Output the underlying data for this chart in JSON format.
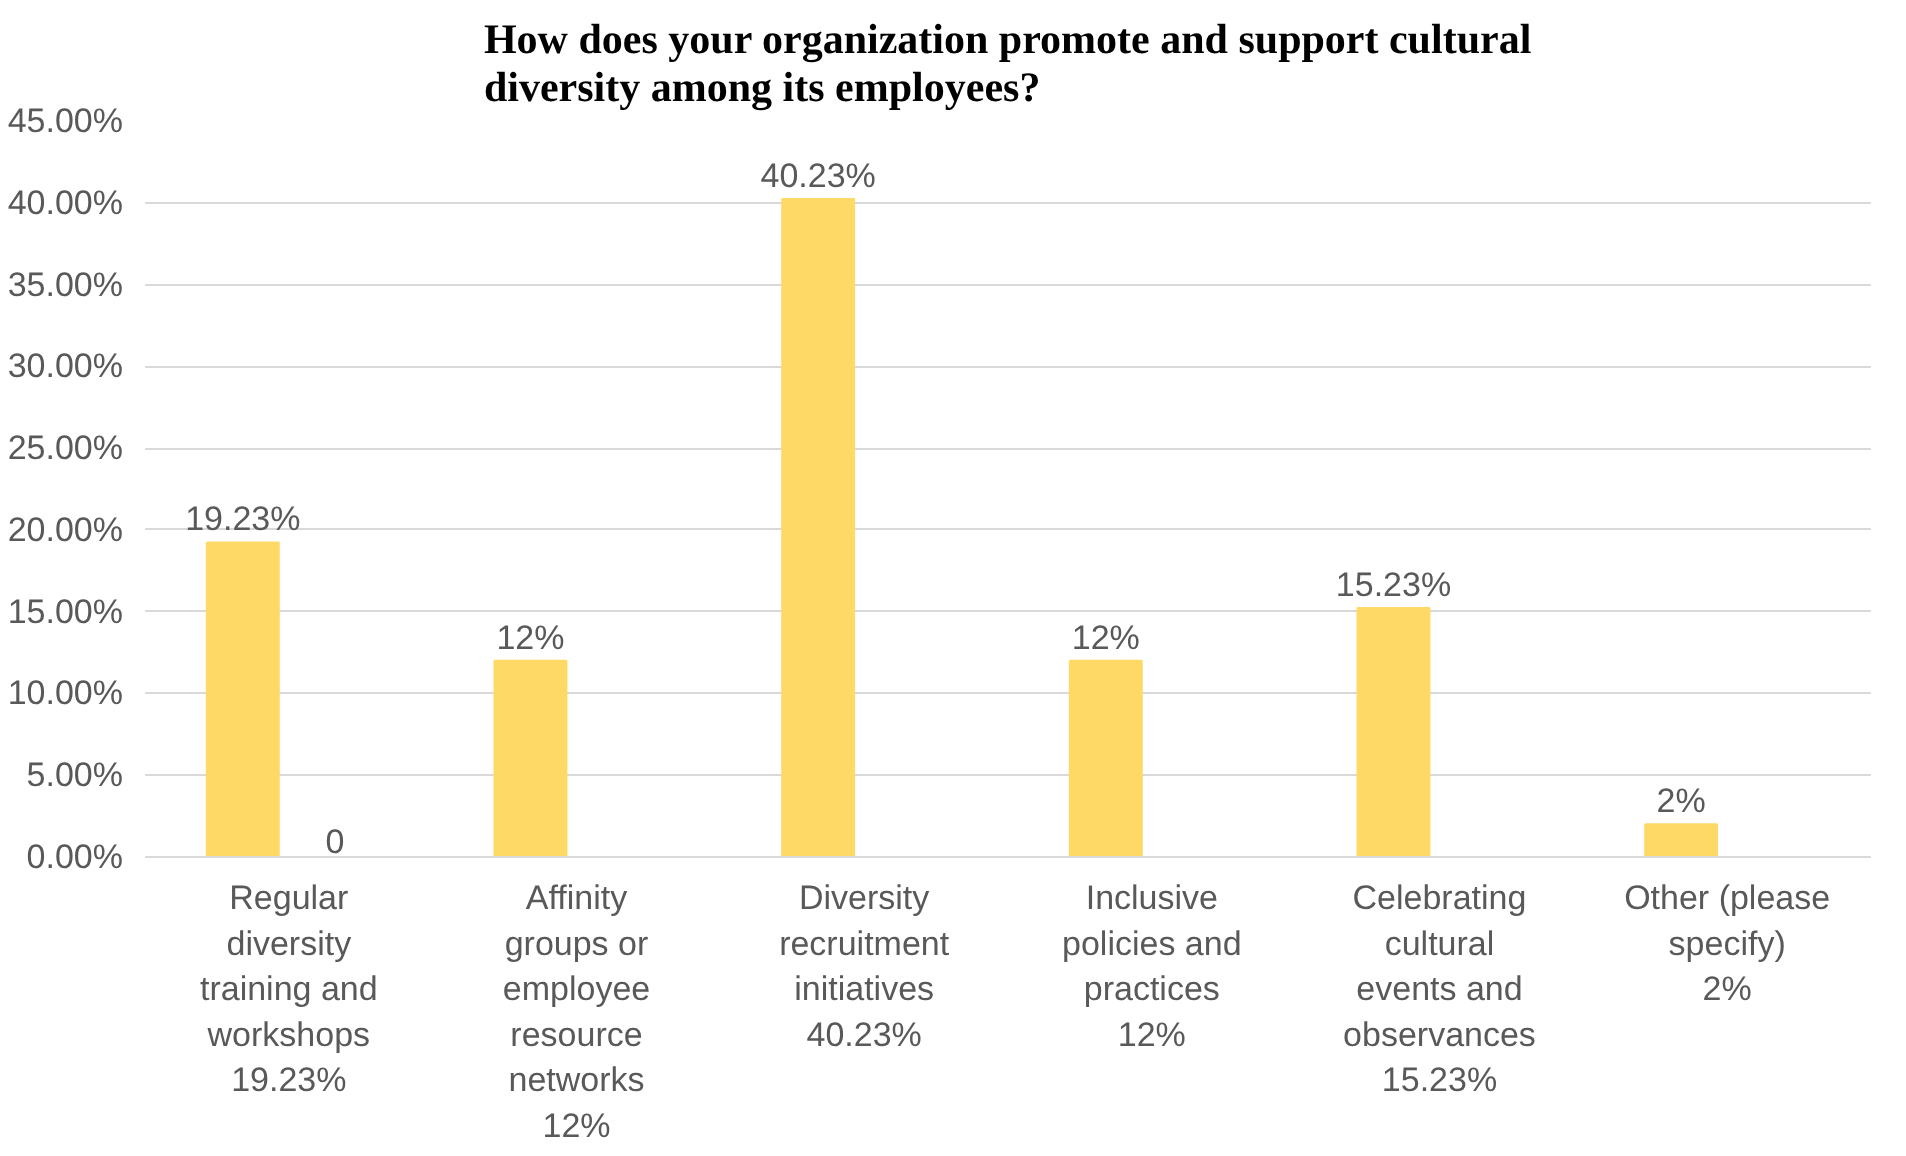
{
  "chart_data": {
    "type": "bar",
    "title": "How does your organization promote and support cultural\ndiversity among its employees?",
    "categories": [
      "Regular\ndiversity\ntraining and\nworkshops\n19.23%",
      "Affinity\ngroups or\nemployee\nresource\nnetworks\n12%",
      "Diversity\nrecruitment\ninitiatives\n40.23%",
      "Inclusive\npolicies and\npractices\n12%",
      "Celebrating\ncultural\nevents and\nobservances\n15.23%",
      "Other (please\nspecify)\n2%"
    ],
    "series": [
      {
        "color": "#ffd966",
        "values": [
          19.23,
          12,
          40.23,
          12,
          15.23,
          2
        ],
        "value_labels": [
          "19.23%",
          "12%",
          "40.23%",
          "12%",
          "15.23%",
          "2%"
        ]
      },
      {
        "color": "#ffd966",
        "values": [
          0,
          null,
          null,
          null,
          null,
          null
        ],
        "value_labels": [
          "0",
          null,
          null,
          null,
          null,
          null
        ]
      }
    ],
    "ylim": [
      0,
      45
    ],
    "yticks": [
      {
        "value": 0,
        "label": "0.00%"
      },
      {
        "value": 5,
        "label": "5.00%"
      },
      {
        "value": 10,
        "label": "10.00%"
      },
      {
        "value": 15,
        "label": "15.00%"
      },
      {
        "value": 20,
        "label": "20.00%"
      },
      {
        "value": 25,
        "label": "25.00%"
      },
      {
        "value": 30,
        "label": "30.00%"
      },
      {
        "value": 35,
        "label": "35.00%"
      },
      {
        "value": 40,
        "label": "40.00%"
      },
      {
        "value": 45,
        "label": "45.00%"
      }
    ],
    "grid": "y"
  }
}
